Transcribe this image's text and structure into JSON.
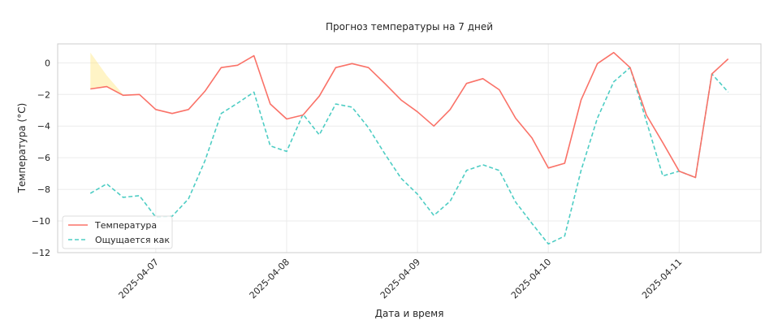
{
  "chart_data": {
    "type": "line",
    "title": "Прогноз температуры на 7 дней",
    "xlabel": "Дата и время",
    "ylabel": "Температура (°C)",
    "x_ticks": [
      "2025-04-07",
      "2025-04-08",
      "2025-04-09",
      "2025-04-10",
      "2025-04-11"
    ],
    "y_ticks": [
      0,
      -2,
      -4,
      -6,
      -8,
      -10,
      -12
    ],
    "xlim": [
      "2025-04-06 06:00",
      "2025-04-11 15:00"
    ],
    "ylim": [
      -12,
      1.2
    ],
    "grid": true,
    "legend": "lower-left",
    "x": [
      "2025-04-06 12:00",
      "2025-04-06 15:00",
      "2025-04-06 18:00",
      "2025-04-06 21:00",
      "2025-04-07 00:00",
      "2025-04-07 03:00",
      "2025-04-07 06:00",
      "2025-04-07 09:00",
      "2025-04-07 12:00",
      "2025-04-07 15:00",
      "2025-04-07 18:00",
      "2025-04-07 21:00",
      "2025-04-08 00:00",
      "2025-04-08 03:00",
      "2025-04-08 06:00",
      "2025-04-08 09:00",
      "2025-04-08 12:00",
      "2025-04-08 15:00",
      "2025-04-08 18:00",
      "2025-04-08 21:00",
      "2025-04-09 00:00",
      "2025-04-09 03:00",
      "2025-04-09 06:00",
      "2025-04-09 09:00",
      "2025-04-09 12:00",
      "2025-04-09 15:00",
      "2025-04-09 18:00",
      "2025-04-09 21:00",
      "2025-04-10 00:00",
      "2025-04-10 03:00",
      "2025-04-10 06:00",
      "2025-04-10 09:00",
      "2025-04-10 12:00",
      "2025-04-10 15:00",
      "2025-04-10 18:00",
      "2025-04-10 21:00",
      "2025-04-11 00:00",
      "2025-04-11 03:00",
      "2025-04-11 06:00",
      "2025-04-11 09:00"
    ],
    "series": [
      {
        "name": "Температура",
        "color": "#fa7268",
        "style": "solid",
        "values": [
          -1.65,
          -1.5,
          -2.05,
          -2.0,
          -2.95,
          -3.2,
          -2.95,
          -1.8,
          -0.3,
          -0.15,
          0.45,
          -2.6,
          -3.55,
          -3.3,
          -2.1,
          -0.3,
          -0.05,
          -0.3,
          -1.3,
          -2.35,
          -3.1,
          -4.0,
          -2.95,
          -1.3,
          -1.0,
          -1.7,
          -3.5,
          -4.75,
          -6.65,
          -6.35,
          -2.35,
          -0.05,
          0.65,
          -0.3,
          -3.3,
          -5.05,
          -6.85,
          -7.25,
          -0.7,
          0.25
        ]
      },
      {
        "name": "Ощущается как",
        "color": "#4ecdc4",
        "style": "dashed",
        "values": [
          -8.25,
          -7.65,
          -8.5,
          -8.4,
          -9.75,
          -9.7,
          -8.6,
          -6.2,
          -3.2,
          -2.55,
          -1.85,
          -5.25,
          -5.6,
          -3.25,
          -4.55,
          -2.6,
          -2.8,
          -4.1,
          -5.75,
          -7.3,
          -8.3,
          -9.65,
          -8.75,
          -6.8,
          -6.45,
          -6.8,
          -8.8,
          -10.15,
          -11.45,
          -10.95,
          -6.8,
          -3.5,
          -1.2,
          -0.3,
          -3.7,
          -7.15,
          -6.85,
          -7.25,
          -0.7,
          -1.85
        ]
      }
    ],
    "shaded_band": {
      "color": "#ffe680",
      "x": [
        "2025-04-06 12:00",
        "2025-04-06 15:00",
        "2025-04-06 18:00"
      ],
      "upper": [
        0.65,
        -0.8,
        -2.0
      ],
      "lower": [
        -1.65,
        -1.5,
        -2.05
      ]
    }
  }
}
